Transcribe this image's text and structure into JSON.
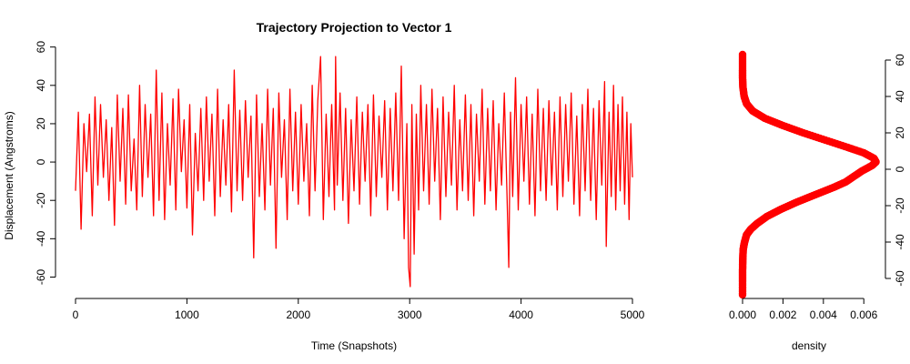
{
  "chart_data": [
    {
      "type": "line",
      "title": "Trajectory Projection to Vector 1",
      "xlabel": "Time (Snapshots)",
      "ylabel": "Displacement (Angstroms)",
      "xlim": [
        0,
        5000
      ],
      "ylim": [
        -65,
        57
      ],
      "x_ticks": [
        0,
        1000,
        2000,
        3000,
        4000,
        5000
      ],
      "y_ticks": [
        -60,
        -40,
        -20,
        0,
        20,
        40,
        60
      ],
      "line_color": "#ff0000",
      "grid": false,
      "series": [
        {
          "points": [
            [
              0,
              -15
            ],
            [
              25,
              26
            ],
            [
              50,
              -35
            ],
            [
              75,
              20
            ],
            [
              100,
              -5
            ],
            [
              125,
              25
            ],
            [
              150,
              -28
            ],
            [
              175,
              34
            ],
            [
              200,
              -12
            ],
            [
              225,
              30
            ],
            [
              250,
              -8
            ],
            [
              275,
              22
            ],
            [
              300,
              -20
            ],
            [
              325,
              18
            ],
            [
              350,
              -33
            ],
            [
              375,
              35
            ],
            [
              400,
              -10
            ],
            [
              425,
              28
            ],
            [
              450,
              -22
            ],
            [
              475,
              35
            ],
            [
              500,
              -15
            ],
            [
              525,
              12
            ],
            [
              550,
              -25
            ],
            [
              575,
              40
            ],
            [
              600,
              -18
            ],
            [
              625,
              30
            ],
            [
              650,
              -8
            ],
            [
              675,
              25
            ],
            [
              700,
              -28
            ],
            [
              725,
              48
            ],
            [
              750,
              -20
            ],
            [
              775,
              36
            ],
            [
              800,
              -30
            ],
            [
              825,
              20
            ],
            [
              850,
              -12
            ],
            [
              875,
              33
            ],
            [
              900,
              -25
            ],
            [
              925,
              38
            ],
            [
              950,
              -5
            ],
            [
              975,
              22
            ],
            [
              1000,
              -24
            ],
            [
              1025,
              30
            ],
            [
              1050,
              -38
            ],
            [
              1075,
              15
            ],
            [
              1100,
              -15
            ],
            [
              1125,
              28
            ],
            [
              1150,
              -20
            ],
            [
              1175,
              34
            ],
            [
              1200,
              -10
            ],
            [
              1225,
              25
            ],
            [
              1250,
              -28
            ],
            [
              1275,
              38
            ],
            [
              1300,
              -18
            ],
            [
              1325,
              22
            ],
            [
              1350,
              -12
            ],
            [
              1375,
              30
            ],
            [
              1400,
              -26
            ],
            [
              1425,
              48
            ],
            [
              1450,
              -15
            ],
            [
              1475,
              27
            ],
            [
              1500,
              -20
            ],
            [
              1525,
              32
            ],
            [
              1550,
              -8
            ],
            [
              1575,
              24
            ],
            [
              1600,
              -50
            ],
            [
              1625,
              35
            ],
            [
              1650,
              -18
            ],
            [
              1675,
              20
            ],
            [
              1700,
              -25
            ],
            [
              1725,
              38
            ],
            [
              1750,
              -12
            ],
            [
              1775,
              28
            ],
            [
              1800,
              -45
            ],
            [
              1825,
              36
            ],
            [
              1850,
              -8
            ],
            [
              1875,
              22
            ],
            [
              1900,
              -30
            ],
            [
              1925,
              38
            ],
            [
              1950,
              -15
            ],
            [
              1975,
              26
            ],
            [
              2000,
              -22
            ],
            [
              2025,
              30
            ],
            [
              2050,
              -10
            ],
            [
              2075,
              20
            ],
            [
              2100,
              -28
            ],
            [
              2125,
              40
            ],
            [
              2150,
              -15
            ],
            [
              2175,
              32
            ],
            [
              2200,
              55
            ],
            [
              2225,
              -30
            ],
            [
              2250,
              25
            ],
            [
              2275,
              -18
            ],
            [
              2300,
              30
            ],
            [
              2325,
              -25
            ],
            [
              2335,
              55
            ],
            [
              2350,
              -12
            ],
            [
              2375,
              36
            ],
            [
              2400,
              -20
            ],
            [
              2425,
              28
            ],
            [
              2450,
              -32
            ],
            [
              2475,
              22
            ],
            [
              2500,
              -15
            ],
            [
              2525,
              34
            ],
            [
              2550,
              -22
            ],
            [
              2575,
              26
            ],
            [
              2600,
              -10
            ],
            [
              2625,
              30
            ],
            [
              2650,
              -28
            ],
            [
              2675,
              35
            ],
            [
              2700,
              -18
            ],
            [
              2725,
              24
            ],
            [
              2750,
              -8
            ],
            [
              2775,
              32
            ],
            [
              2800,
              -25
            ],
            [
              2825,
              28
            ],
            [
              2850,
              -15
            ],
            [
              2875,
              36
            ],
            [
              2900,
              -20
            ],
            [
              2925,
              50
            ],
            [
              2950,
              -40
            ],
            [
              2975,
              20
            ],
            [
              2990,
              -55
            ],
            [
              3005,
              -65
            ],
            [
              3020,
              30
            ],
            [
              3040,
              -48
            ],
            [
              3060,
              25
            ],
            [
              3080,
              -25
            ],
            [
              3100,
              40
            ],
            [
              3125,
              -15
            ],
            [
              3150,
              30
            ],
            [
              3175,
              -22
            ],
            [
              3200,
              38
            ],
            [
              3225,
              -10
            ],
            [
              3250,
              28
            ],
            [
              3275,
              -30
            ],
            [
              3300,
              34
            ],
            [
              3325,
              -18
            ],
            [
              3350,
              26
            ],
            [
              3375,
              -12
            ],
            [
              3400,
              40
            ],
            [
              3425,
              -25
            ],
            [
              3450,
              22
            ],
            [
              3475,
              -15
            ],
            [
              3500,
              35
            ],
            [
              3525,
              -20
            ],
            [
              3550,
              30
            ],
            [
              3575,
              -28
            ],
            [
              3600,
              25
            ],
            [
              3625,
              -10
            ],
            [
              3650,
              38
            ],
            [
              3675,
              -22
            ],
            [
              3700,
              28
            ],
            [
              3725,
              -15
            ],
            [
              3750,
              32
            ],
            [
              3775,
              -25
            ],
            [
              3800,
              20
            ],
            [
              3825,
              -12
            ],
            [
              3850,
              36
            ],
            [
              3875,
              -20
            ],
            [
              3890,
              -55
            ],
            [
              3905,
              26
            ],
            [
              3925,
              -18
            ],
            [
              3950,
              44
            ],
            [
              3975,
              -25
            ],
            [
              4000,
              30
            ],
            [
              4025,
              -10
            ],
            [
              4050,
              34
            ],
            [
              4075,
              -22
            ],
            [
              4100,
              25
            ],
            [
              4125,
              -28
            ],
            [
              4150,
              38
            ],
            [
              4175,
              -15
            ],
            [
              4200,
              28
            ],
            [
              4225,
              -20
            ],
            [
              4250,
              32
            ],
            [
              4275,
              -12
            ],
            [
              4300,
              26
            ],
            [
              4325,
              -25
            ],
            [
              4350,
              34
            ],
            [
              4375,
              -18
            ],
            [
              4400,
              30
            ],
            [
              4425,
              -10
            ],
            [
              4450,
              36
            ],
            [
              4475,
              -22
            ],
            [
              4500,
              24
            ],
            [
              4525,
              -28
            ],
            [
              4550,
              30
            ],
            [
              4575,
              -15
            ],
            [
              4600,
              38
            ],
            [
              4625,
              -20
            ],
            [
              4650,
              28
            ],
            [
              4675,
              -30
            ],
            [
              4700,
              32
            ],
            [
              4725,
              -12
            ],
            [
              4750,
              42
            ],
            [
              4765,
              -44
            ],
            [
              4790,
              26
            ],
            [
              4810,
              -18
            ],
            [
              4830,
              40
            ],
            [
              4850,
              -25
            ],
            [
              4870,
              30
            ],
            [
              4890,
              -15
            ],
            [
              4910,
              34
            ],
            [
              4930,
              -22
            ],
            [
              4950,
              26
            ],
            [
              4970,
              -30
            ],
            [
              4985,
              20
            ],
            [
              5000,
              -8
            ]
          ]
        }
      ]
    },
    {
      "type": "line",
      "xlabel": "density",
      "ylabel": "",
      "xlim": [
        0,
        0.0068
      ],
      "ylim": [
        -72,
        65
      ],
      "x_ticks": [
        "0.000",
        "0.002",
        "0.004",
        "0.006"
      ],
      "x_tick_values": [
        0,
        0.002,
        0.004,
        0.006
      ],
      "y_ticks": [
        -60,
        -40,
        -20,
        0,
        20,
        40,
        60
      ],
      "y_axis_side": "right",
      "line_color": "#ff0000",
      "series": [
        {
          "points": [
            [
              0.0,
              63
            ],
            [
              0.0,
              55
            ],
            [
              0.0,
              50
            ],
            [
              2e-05,
              45
            ],
            [
              8e-05,
              40
            ],
            [
              0.0002,
              36
            ],
            [
              0.0005,
              32
            ],
            [
              0.0011,
              28
            ],
            [
              0.002,
              24
            ],
            [
              0.003,
              20
            ],
            [
              0.0041,
              16
            ],
            [
              0.0052,
              12
            ],
            [
              0.006,
              9
            ],
            [
              0.0065,
              6
            ],
            [
              0.0066,
              4
            ],
            [
              0.0064,
              2
            ],
            [
              0.0059,
              -1
            ],
            [
              0.0055,
              -4
            ],
            [
              0.0051,
              -7
            ],
            [
              0.0045,
              -10
            ],
            [
              0.0036,
              -14
            ],
            [
              0.0027,
              -18
            ],
            [
              0.0019,
              -22
            ],
            [
              0.0012,
              -26
            ],
            [
              0.0007,
              -30
            ],
            [
              0.0004,
              -33
            ],
            [
              0.0002,
              -36
            ],
            [
              0.0001,
              -40
            ],
            [
              3e-05,
              -44
            ],
            [
              1e-05,
              -50
            ],
            [
              0.0,
              -56
            ],
            [
              0.0,
              -62
            ],
            [
              0.0,
              -69
            ]
          ]
        }
      ]
    }
  ]
}
